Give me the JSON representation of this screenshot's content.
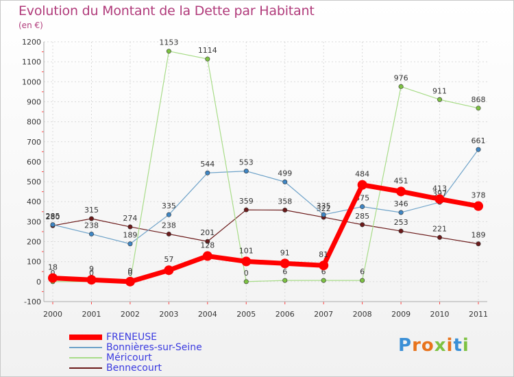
{
  "header": {
    "title": "Evolution du Montant de la Dette par Habitant",
    "unit": "(en €)"
  },
  "brand": {
    "text": "Proxiti",
    "colors": [
      "#3a8fd6",
      "#e8731c",
      "#e8731c",
      "#7dc242",
      "#e8731c",
      "#3a8fd6",
      "#7dc242"
    ]
  },
  "chart_data": {
    "type": "line",
    "title": "Evolution du Montant de la Dette par Habitant",
    "ylabel": "(en €)",
    "xlabel": "",
    "x": [
      "2000",
      "2001",
      "2002",
      "2003",
      "2004",
      "2005",
      "2006",
      "2007",
      "2008",
      "2009",
      "2010",
      "2011"
    ],
    "ylim": [
      -100,
      1200
    ],
    "yticks": [
      -100,
      0,
      100,
      200,
      300,
      400,
      500,
      600,
      700,
      800,
      900,
      1000,
      1100,
      1200
    ],
    "grid": true,
    "legend": "bottom-left",
    "series": [
      {
        "name": "Bennecourt",
        "color": "#6b1a1a",
        "dot": "#6b1a1a",
        "width": 1.2,
        "values": [
          280,
          315,
          274,
          238,
          201,
          359,
          358,
          322,
          285,
          253,
          221,
          189
        ]
      },
      {
        "name": "Bonnières-sur-Seine",
        "color": "#6fa3c9",
        "dot": "#3f86c4",
        "width": 1.2,
        "values": [
          285,
          238,
          189,
          335,
          544,
          553,
          499,
          335,
          375,
          346,
          397,
          661
        ]
      },
      {
        "name": "Méricourt",
        "color": "#a8dc88",
        "dot": "#7dc242",
        "width": 1.2,
        "values": [
          0,
          0,
          0,
          1153,
          1114,
          0,
          6,
          6,
          6,
          976,
          911,
          868
        ]
      },
      {
        "name": "FRENEUSE",
        "color": "#ff0000",
        "dot": "#ff0000",
        "width": 7,
        "values": [
          18,
          9,
          0,
          57,
          128,
          101,
          91,
          81,
          484,
          451,
          413,
          378
        ]
      }
    ]
  },
  "legend": [
    {
      "name": "FRENEUSE",
      "color": "#ff0000",
      "text_color": "#3a3ae0",
      "thickness": 8
    },
    {
      "name": "Bonnières-sur-Seine",
      "color": "#6fa3c9",
      "text_color": "#3a3ae0",
      "thickness": 2
    },
    {
      "name": "Méricourt",
      "color": "#a8dc88",
      "text_color": "#3a3ae0",
      "thickness": 2
    },
    {
      "name": "Bennecourt",
      "color": "#6b1a1a",
      "text_color": "#3a3ae0",
      "thickness": 2
    }
  ]
}
